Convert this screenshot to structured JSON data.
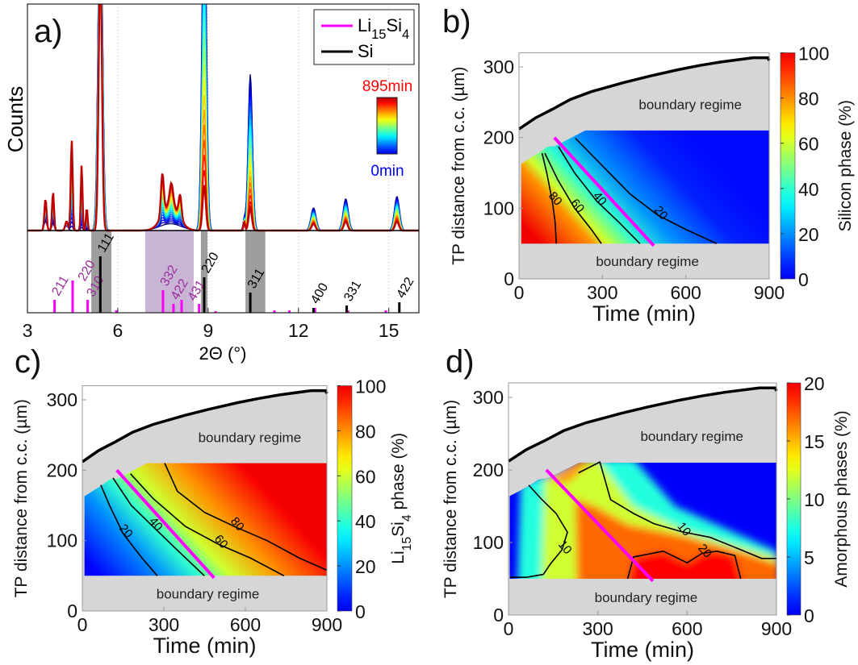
{
  "panel_labels": [
    "a)",
    "b)",
    "c)",
    "d)"
  ],
  "chart_data": [
    {
      "panel": "a)",
      "type": "line",
      "xlabel": "2Θ (°)",
      "ylabel": "Counts",
      "xlim": [
        3,
        16
      ],
      "xticks": [
        3,
        6,
        9,
        12,
        15
      ],
      "grid": "vertical dotted at x ticks",
      "legend_placement": "top-right",
      "legend": [
        {
          "name": "Li15Si4",
          "color": "#ff00ff"
        },
        {
          "name": "Si",
          "color": "#000000"
        }
      ],
      "time_colorbar": {
        "max_label": "895min",
        "min_label": "0min",
        "max_color": "#ff0000",
        "min_color": "#0000ff",
        "colormap": "jet"
      },
      "peaks": [
        {
          "two_theta": 3.6,
          "start": 0.04,
          "end": 0.14,
          "width": 0.04
        },
        {
          "two_theta": 3.85,
          "start": 0.03,
          "end": 0.17,
          "width": 0.035
        },
        {
          "two_theta": 4.3,
          "start": 0.02,
          "end": 0.04,
          "width": 0.05
        },
        {
          "two_theta": 4.47,
          "start": 0.0,
          "end": 0.4,
          "width": 0.035
        },
        {
          "two_theta": 4.8,
          "start": 0.0,
          "end": 0.29,
          "width": 0.03
        },
        {
          "two_theta": 4.97,
          "start": 0.0,
          "end": 0.1,
          "width": 0.03
        },
        {
          "two_theta": 5.42,
          "start": 1.6,
          "end": 1.2,
          "width": 0.06
        },
        {
          "two_theta": 7.75,
          "start": 0.03,
          "end": 0.12,
          "width": 0.3
        },
        {
          "two_theta": 7.48,
          "start": 0.0,
          "end": 0.18,
          "width": 0.05
        },
        {
          "two_theta": 7.78,
          "start": 0.0,
          "end": 0.09,
          "width": 0.06
        },
        {
          "two_theta": 8.07,
          "start": 0.0,
          "end": 0.1,
          "width": 0.05
        },
        {
          "two_theta": 8.87,
          "start": 1.6,
          "end": 0.2,
          "width": 0.06
        },
        {
          "two_theta": 10.2,
          "start": 0.05,
          "end": 0.04,
          "width": 0.03
        },
        {
          "two_theta": 10.4,
          "start": 0.69,
          "end": 0.1,
          "width": 0.06
        },
        {
          "two_theta": 12.5,
          "start": 0.1,
          "end": 0.03,
          "width": 0.07
        },
        {
          "two_theta": 13.57,
          "start": 0.14,
          "end": 0.04,
          "width": 0.07
        },
        {
          "two_theta": 15.27,
          "start": 0.15,
          "end": 0.04,
          "width": 0.07
        }
      ],
      "reference_sticks": {
        "Li15Si4": [
          {
            "two_theta": 3.9,
            "hkl": "211",
            "intensity": 16
          },
          {
            "two_theta": 4.5,
            "hkl": "220",
            "intensity": 40
          },
          {
            "two_theta": 5.0,
            "hkl": "310",
            "intensity": 16
          },
          {
            "two_theta": 7.5,
            "hkl": "332",
            "intensity": 28
          },
          {
            "two_theta": 7.85,
            "hkl": "422",
            "intensity": 11
          },
          {
            "two_theta": 8.12,
            "hkl": "431",
            "intensity": 16
          },
          {
            "two_theta": 8.7,
            "hkl": "",
            "intensity": 11
          },
          {
            "two_theta": 5.95,
            "hkl": "",
            "intensity": 3
          },
          {
            "two_theta": 9.25,
            "hkl": "",
            "intensity": 2
          },
          {
            "two_theta": 11.2,
            "hkl": "",
            "intensity": 3
          },
          {
            "two_theta": 11.7,
            "hkl": "",
            "intensity": 3
          },
          {
            "two_theta": 12.55,
            "hkl": "",
            "intensity": 6
          },
          {
            "two_theta": 13.65,
            "hkl": "",
            "intensity": 3
          },
          {
            "two_theta": 14.9,
            "hkl": "",
            "intensity": 3
          }
        ],
        "Si": [
          {
            "two_theta": 5.42,
            "hkl": "111",
            "intensity": 70
          },
          {
            "two_theta": 8.87,
            "hkl": "220",
            "intensity": 44
          },
          {
            "two_theta": 10.4,
            "hkl": "311",
            "intensity": 25
          },
          {
            "two_theta": 12.5,
            "hkl": "400",
            "intensity": 6
          },
          {
            "two_theta": 13.6,
            "hkl": "331",
            "intensity": 9
          },
          {
            "two_theta": 15.35,
            "hkl": "422",
            "intensity": 13
          }
        ]
      },
      "shaded_ranges": [
        {
          "range": [
            5.12,
            5.79
          ],
          "color": "#9e9e9e"
        },
        {
          "range": [
            6.91,
            8.52
          ],
          "color": "#c9b4d6"
        },
        {
          "range": [
            8.76,
            8.98
          ],
          "color": "#9e9e9e"
        },
        {
          "range": [
            10.24,
            10.9
          ],
          "color": "#9e9e9e"
        }
      ]
    },
    {
      "panel": "b)",
      "type": "heatmap",
      "xlabel": "Time (min)",
      "ylabel": "TP distance from c.c. (µm)",
      "xlim": [
        0,
        900
      ],
      "ylim": [
        0,
        320
      ],
      "xticks": [
        0,
        300,
        600,
        900
      ],
      "yticks": [
        0,
        100,
        200,
        300
      ],
      "colorbar": {
        "label": "Silicon phase (%)",
        "range": [
          0,
          100
        ],
        "ticks": [
          0,
          20,
          40,
          60,
          80,
          100
        ],
        "colormap": "jet"
      },
      "boundary_label": "boundary regime",
      "upper_boundary": [
        [
          0,
          212
        ],
        [
          60,
          228
        ],
        [
          120,
          240
        ],
        [
          185,
          254
        ],
        [
          260,
          265
        ],
        [
          378,
          278
        ],
        [
          470,
          287
        ],
        [
          572,
          296
        ],
        [
          650,
          302
        ],
        [
          726,
          307
        ],
        [
          842,
          313
        ],
        [
          895,
          313
        ],
        [
          900,
          309
        ]
      ],
      "data_region": [
        [
          8,
          50
        ],
        [
          8,
          163
        ],
        [
          69,
          178
        ],
        [
          102,
          187
        ],
        [
          130,
          188
        ],
        [
          238,
          210
        ],
        [
          900,
          210
        ],
        [
          900,
          50
        ]
      ],
      "contours": [
        {
          "level": 80,
          "points": [
            [
              83,
              178
            ],
            [
              100,
              150
            ],
            [
              120,
              110
            ],
            [
              130,
              80
            ],
            [
              134,
              50
            ]
          ]
        },
        {
          "level": 60,
          "points": [
            [
              93,
              178
            ],
            [
              140,
              140
            ],
            [
              200,
              100
            ],
            [
              260,
              70
            ],
            [
              296,
              50
            ]
          ]
        },
        {
          "level": 40,
          "points": [
            [
              142,
              187
            ],
            [
              200,
              150
            ],
            [
              280,
              110
            ],
            [
              360,
              80
            ],
            [
              435,
              50
            ]
          ]
        },
        {
          "level": 20,
          "points": [
            [
              203,
              199
            ],
            [
              300,
              160
            ],
            [
              400,
              120
            ],
            [
              500,
              90
            ],
            [
              600,
              70
            ],
            [
              711,
              50
            ]
          ]
        }
      ],
      "marker_line": {
        "color": "#ff00ff",
        "points": [
          [
            127,
            200
          ],
          [
            485,
            47
          ]
        ]
      }
    },
    {
      "panel": "c)",
      "type": "heatmap",
      "xlabel": "Time (min)",
      "ylabel": "TP distance from c.c. (µm)",
      "xlim": [
        0,
        900
      ],
      "ylim": [
        0,
        320
      ],
      "xticks": [
        0,
        300,
        600,
        900
      ],
      "yticks": [
        0,
        100,
        200,
        300
      ],
      "colorbar": {
        "label": "Li15Si4 phase (%)",
        "range": [
          0,
          100
        ],
        "ticks": [
          0,
          20,
          40,
          60,
          80,
          100
        ],
        "colormap": "jet"
      },
      "boundary_label": "boundary regime",
      "upper_boundary": [
        [
          0,
          212
        ],
        [
          60,
          228
        ],
        [
          120,
          240
        ],
        [
          185,
          254
        ],
        [
          260,
          265
        ],
        [
          378,
          278
        ],
        [
          470,
          287
        ],
        [
          572,
          296
        ],
        [
          650,
          302
        ],
        [
          726,
          307
        ],
        [
          842,
          313
        ],
        [
          895,
          313
        ],
        [
          900,
          309
        ]
      ],
      "data_region": [
        [
          8,
          50
        ],
        [
          8,
          163
        ],
        [
          69,
          178
        ],
        [
          102,
          187
        ],
        [
          130,
          188
        ],
        [
          238,
          210
        ],
        [
          900,
          210
        ],
        [
          900,
          50
        ]
      ],
      "contours": [
        {
          "level": 20,
          "points": [
            [
              68,
              179
            ],
            [
              100,
              150
            ],
            [
              150,
              110
            ],
            [
              220,
              75
            ],
            [
              276,
              50
            ]
          ]
        },
        {
          "level": 40,
          "points": [
            [
              113,
              189
            ],
            [
              180,
              150
            ],
            [
              260,
              120
            ],
            [
              340,
              90
            ],
            [
              449,
              50
            ]
          ]
        },
        {
          "level": 60,
          "points": [
            [
              177,
              195
            ],
            [
              260,
              160
            ],
            [
              380,
              120
            ],
            [
              500,
              95
            ],
            [
              620,
              75
            ],
            [
              742,
              50
            ]
          ]
        },
        {
          "level": 80,
          "points": [
            [
              303,
              210
            ],
            [
              350,
              170
            ],
            [
              450,
              140
            ],
            [
              560,
              120
            ],
            [
              680,
              100
            ],
            [
              800,
              75
            ],
            [
              900,
              58
            ]
          ]
        }
      ],
      "marker_line": {
        "color": "#ff00ff",
        "points": [
          [
            127,
            200
          ],
          [
            485,
            47
          ]
        ]
      }
    },
    {
      "panel": "d)",
      "type": "heatmap",
      "xlabel": "Time (min)",
      "ylabel": "TP distance from c.c. (µm)",
      "xlim": [
        0,
        900
      ],
      "ylim": [
        0,
        320
      ],
      "xticks": [
        0,
        300,
        600,
        900
      ],
      "yticks": [
        0,
        100,
        200,
        300
      ],
      "colorbar": {
        "label": "Amorphous phases (%)",
        "range": [
          0,
          20
        ],
        "ticks": [
          0,
          5,
          10,
          15,
          20
        ],
        "colormap": "jet"
      },
      "boundary_label": "boundary regime",
      "upper_boundary": [
        [
          0,
          212
        ],
        [
          60,
          228
        ],
        [
          120,
          240
        ],
        [
          185,
          254
        ],
        [
          260,
          265
        ],
        [
          378,
          278
        ],
        [
          470,
          287
        ],
        [
          572,
          296
        ],
        [
          650,
          302
        ],
        [
          726,
          307
        ],
        [
          842,
          313
        ],
        [
          895,
          313
        ],
        [
          900,
          309
        ]
      ],
      "data_region": [
        [
          4,
          50
        ],
        [
          4,
          164
        ],
        [
          69,
          178
        ],
        [
          102,
          187
        ],
        [
          130,
          188
        ],
        [
          238,
          210
        ],
        [
          900,
          210
        ],
        [
          900,
          50
        ]
      ],
      "contours": [
        {
          "level": 10,
          "points": [
            [
              68,
              179
            ],
            [
              110,
              160
            ],
            [
              160,
              140
            ],
            [
              198,
              114
            ],
            [
              180,
              90
            ],
            [
              140,
              70
            ],
            [
              117,
              56
            ],
            [
              60,
              52
            ],
            [
              5,
              52
            ]
          ]
        },
        {
          "level": 10,
          "points": [
            [
              235,
              196
            ],
            [
              307,
              211
            ],
            [
              343,
              159
            ],
            [
              420,
              140
            ],
            [
              488,
              126
            ],
            [
              580,
              115
            ],
            [
              678,
              107
            ],
            [
              780,
              90
            ],
            [
              850,
              78
            ],
            [
              900,
              78
            ]
          ]
        },
        {
          "level": 20,
          "points": [
            [
              400,
              50
            ],
            [
              420,
              80
            ],
            [
              520,
              88
            ],
            [
              600,
              72
            ],
            [
              650,
              85
            ],
            [
              700,
              88
            ],
            [
              760,
              82
            ],
            [
              780,
              50
            ]
          ]
        }
      ],
      "marker_line": {
        "color": "#ff00ff",
        "points": [
          [
            127,
            200
          ],
          [
            485,
            47
          ]
        ]
      }
    }
  ]
}
